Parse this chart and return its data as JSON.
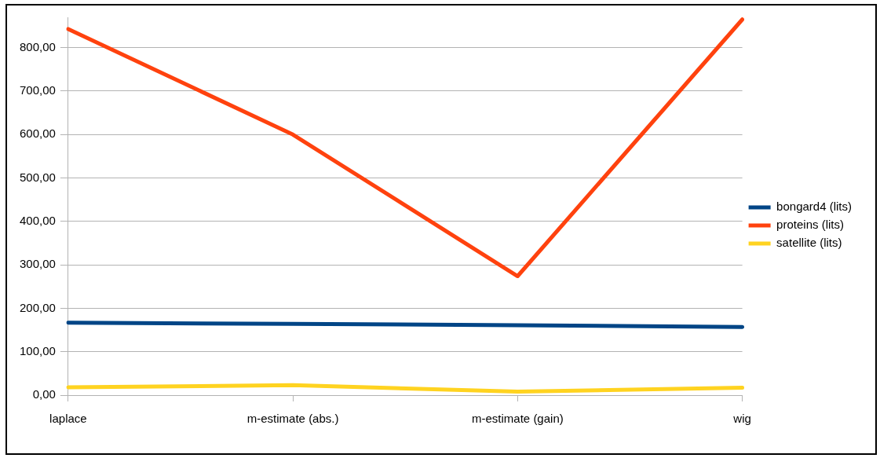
{
  "chart_data": {
    "type": "line",
    "categories": [
      "laplace",
      "m-estimate (abs.)",
      "m-estimate (gain)",
      "wig"
    ],
    "series": [
      {
        "name": "bongard4 (lits)",
        "color": "#004586",
        "values": [
          167,
          164,
          161,
          157
        ]
      },
      {
        "name": "proteins (lits)",
        "color": "#ff420e",
        "values": [
          843,
          600,
          274,
          865
        ]
      },
      {
        "name": "satellite (lits)",
        "color": "#ffd320",
        "values": [
          18,
          23,
          8,
          17
        ]
      }
    ],
    "ylim": [
      0,
      870
    ],
    "yticks": [
      {
        "value": 0,
        "label": "0,00"
      },
      {
        "value": 100,
        "label": "100,00"
      },
      {
        "value": 200,
        "label": "200,00"
      },
      {
        "value": 300,
        "label": "300,00"
      },
      {
        "value": 400,
        "label": "400,00"
      },
      {
        "value": 500,
        "label": "500,00"
      },
      {
        "value": 600,
        "label": "600,00"
      },
      {
        "value": 700,
        "label": "700,00"
      },
      {
        "value": 800,
        "label": "800,00"
      }
    ],
    "grid": "y",
    "legend": "right",
    "marker": "none",
    "line_style": "solid"
  }
}
